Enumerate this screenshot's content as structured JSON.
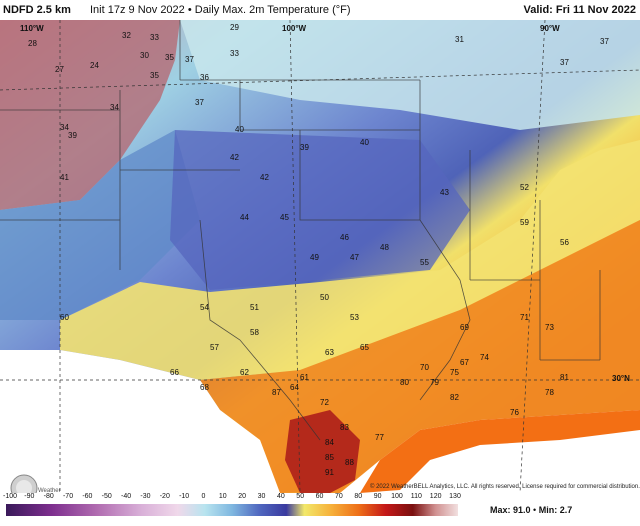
{
  "header": {
    "title": "NDFD 2.5 km",
    "run": "Init 17z 9 Nov 2022 • Daily Max. 2m Temperature (°F)",
    "valid": "Valid: Fri 11 Nov 2022"
  },
  "gridlines": {
    "lon_100": "100°W",
    "lon_90": "90°W",
    "lon_110": "110°W",
    "lat_30": "30°N"
  },
  "copyright": "© 2022 WeatherBELL Analytics, LLC. All rights reserved. License required for commercial distribution.",
  "logo_text": "WeatherBELL",
  "colorbar": {
    "ticks": [
      "-100",
      "-90",
      "-80",
      "-70",
      "-60",
      "-50",
      "-40",
      "-30",
      "-20",
      "-10",
      "0",
      "10",
      "20",
      "30",
      "40",
      "50",
      "60",
      "70",
      "80",
      "90",
      "100",
      "110",
      "120",
      "130"
    ],
    "max_label": "Max: 91.0",
    "min_label": "Min: 2.7",
    "separator": "•"
  },
  "colors": {
    "cold_north": "#c7e3ea",
    "mountain_red": "#b56a74",
    "mid_blue": "#5f6fc2",
    "warm_yellow": "#f1e06a",
    "hot_orange": "#ef7a1c",
    "gulf_orange": "#f36f14",
    "south_texas_red": "#a9171a"
  },
  "temperature_labels": [
    {
      "v": "28"
    },
    {
      "v": "27"
    },
    {
      "v": "24"
    },
    {
      "v": "32"
    },
    {
      "v": "33"
    },
    {
      "v": "30"
    },
    {
      "v": "35"
    },
    {
      "v": "37"
    },
    {
      "v": "33"
    },
    {
      "v": "34"
    },
    {
      "v": "29"
    },
    {
      "v": "31"
    },
    {
      "v": "37"
    },
    {
      "v": "37"
    },
    {
      "v": "35"
    },
    {
      "v": "36"
    },
    {
      "v": "37"
    },
    {
      "v": "34"
    },
    {
      "v": "39"
    },
    {
      "v": "40"
    },
    {
      "v": "41"
    },
    {
      "v": "42"
    },
    {
      "v": "39"
    },
    {
      "v": "40"
    },
    {
      "v": "42"
    },
    {
      "v": "43"
    },
    {
      "v": "44"
    },
    {
      "v": "45"
    },
    {
      "v": "46"
    },
    {
      "v": "47"
    },
    {
      "v": "48"
    },
    {
      "v": "49"
    },
    {
      "v": "50"
    },
    {
      "v": "51"
    },
    {
      "v": "52"
    },
    {
      "v": "53"
    },
    {
      "v": "54"
    },
    {
      "v": "55"
    },
    {
      "v": "56"
    },
    {
      "v": "57"
    },
    {
      "v": "58"
    },
    {
      "v": "59"
    },
    {
      "v": "60"
    },
    {
      "v": "61"
    },
    {
      "v": "62"
    },
    {
      "v": "63"
    },
    {
      "v": "64"
    },
    {
      "v": "65"
    },
    {
      "v": "66"
    },
    {
      "v": "67"
    },
    {
      "v": "68"
    },
    {
      "v": "69"
    },
    {
      "v": "70"
    },
    {
      "v": "71"
    },
    {
      "v": "72"
    },
    {
      "v": "73"
    },
    {
      "v": "74"
    },
    {
      "v": "75"
    },
    {
      "v": "76"
    },
    {
      "v": "77"
    },
    {
      "v": "78"
    },
    {
      "v": "79"
    },
    {
      "v": "80"
    },
    {
      "v": "81"
    },
    {
      "v": "82"
    },
    {
      "v": "83"
    },
    {
      "v": "84"
    },
    {
      "v": "85"
    },
    {
      "v": "87"
    },
    {
      "v": "88"
    },
    {
      "v": "91"
    }
  ]
}
